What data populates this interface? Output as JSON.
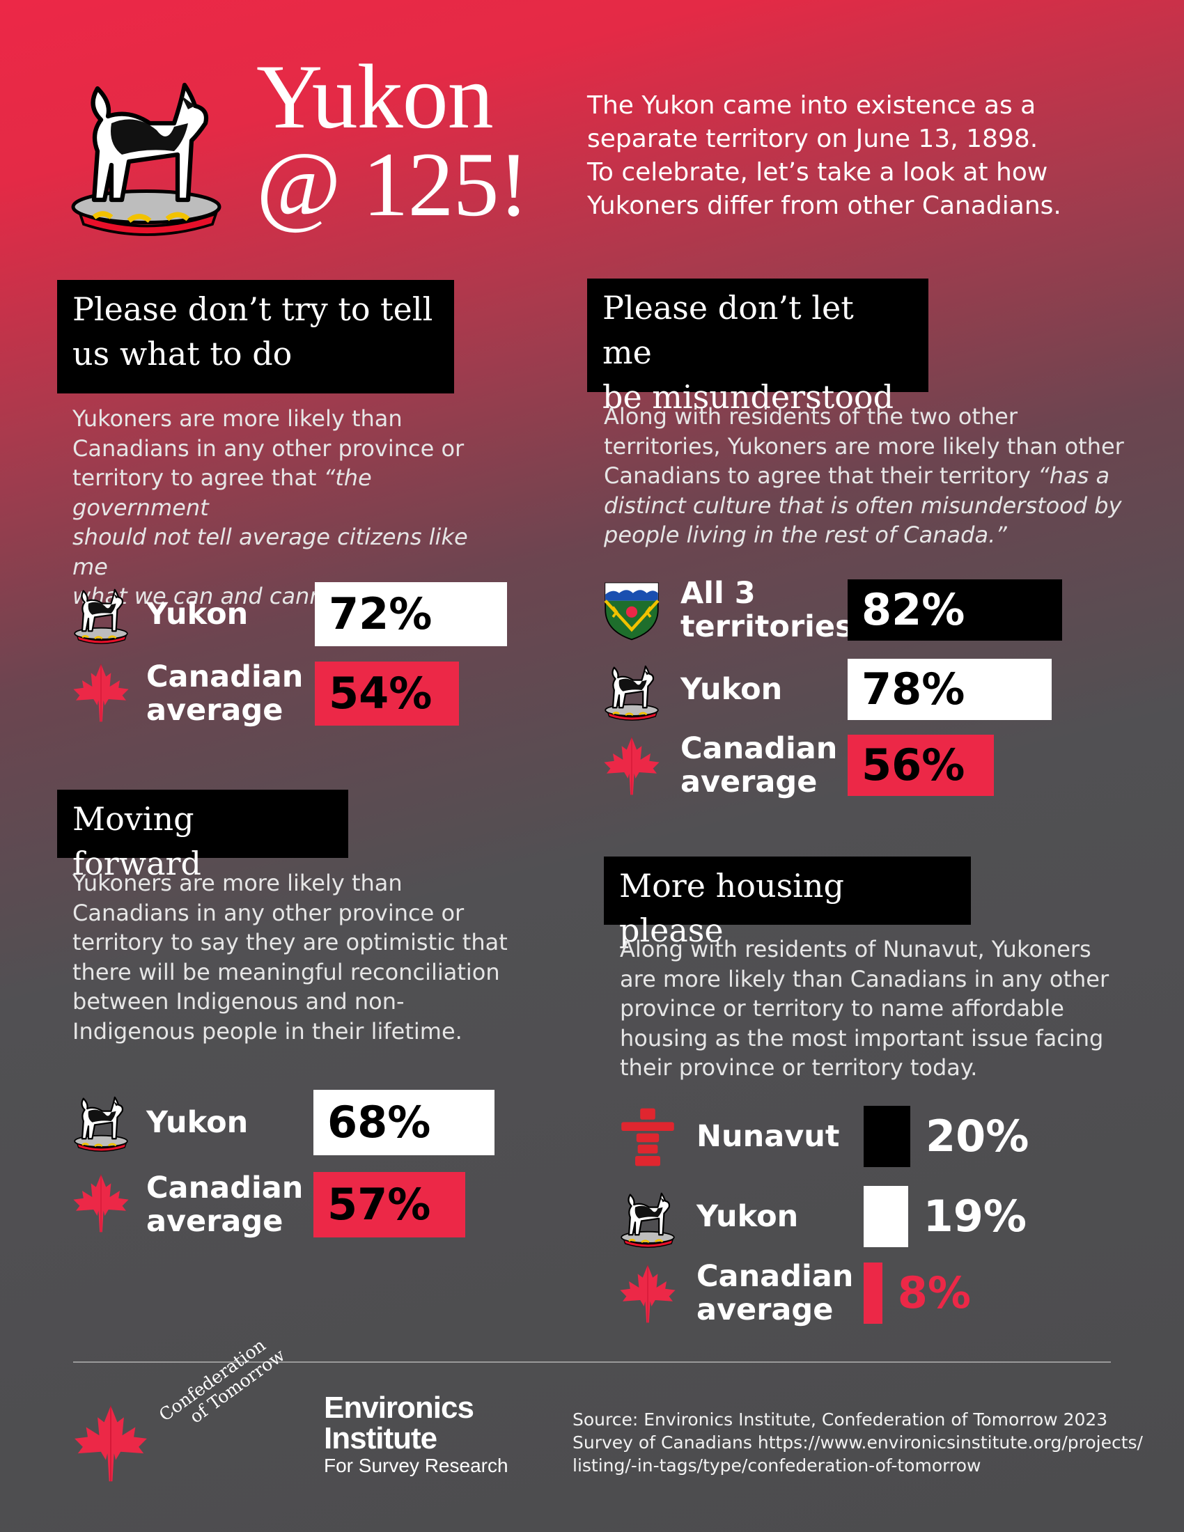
{
  "header": {
    "title_line1": "Yukon",
    "title_line2": "@ 125!",
    "intro_lines": [
      "The Yukon came into existence as a",
      "separate territory on June 13, 1898.",
      "To celebrate, let’s take a look at how",
      "Yukoners differ from other Canadians."
    ]
  },
  "colors": {
    "red": "#ec2847",
    "black": "#000000",
    "white": "#ffffff"
  },
  "sections": {
    "s1": {
      "heading_lines": [
        "Please don’t try to tell",
        "us what to do"
      ],
      "desc_lines": [
        "Yukoners are more likely than",
        "Canadians in any other province or"
      ],
      "desc_mixed": {
        "plain": "territory to agree that ",
        "italic": "“the government"
      },
      "desc_italic_lines": [
        "should not tell average citizens like me",
        "what we can and cannot do.”"
      ]
    },
    "s2": {
      "heading_lines": [
        "Please don’t let me",
        "be misunderstood"
      ],
      "desc_lines": [
        "Along with residents of the two other",
        "territories, Yukoners are more likely than other"
      ],
      "desc_mixed": {
        "plain": "Canadians to agree that their territory ",
        "italic": "“has a"
      },
      "desc_italic_lines": [
        "distinct culture that is often misunderstood by",
        "people living in the rest of Canada.”"
      ]
    },
    "s3": {
      "heading_lines": [
        "Moving forward"
      ],
      "desc_lines": [
        "Yukoners are more likely than",
        "Canadians in any other province or",
        "territory to say they are optimistic that",
        "there will be meaningful reconciliation",
        "between Indigenous and non-",
        "Indigenous people in their lifetime."
      ]
    },
    "s4": {
      "heading_lines": [
        "More housing please"
      ],
      "desc_lines": [
        "Along with residents of Nunavut, Yukoners",
        "are more likely than Canadians in any other",
        "province or territory to name affordable",
        "housing as the most important issue facing",
        "their province or territory today."
      ]
    }
  },
  "chart_data": [
    {
      "type": "bar",
      "categories": [
        [
          "Yukon"
        ],
        [
          "Canadian",
          "average"
        ]
      ],
      "values": [
        72,
        54
      ],
      "value_labels": [
        "72%",
        "54%"
      ],
      "colors": [
        "#ffffff",
        "#ec2847"
      ],
      "icons": [
        "husky-emblem-icon",
        "maple-leaf-icon"
      ],
      "unit": "%"
    },
    {
      "type": "bar",
      "categories": [
        [
          "All 3",
          "territories"
        ],
        [
          "Yukon"
        ],
        [
          "Canadian",
          "average"
        ]
      ],
      "values": [
        82,
        78,
        56
      ],
      "value_labels": [
        "82%",
        "78%",
        "56%"
      ],
      "colors": [
        "#000000",
        "#ffffff",
        "#ec2847"
      ],
      "icons": [
        "nwt-shield-icon",
        "husky-emblem-icon",
        "maple-leaf-icon"
      ],
      "unit": "%"
    },
    {
      "type": "bar",
      "categories": [
        [
          "Yukon"
        ],
        [
          "Canadian",
          "average"
        ]
      ],
      "values": [
        68,
        57
      ],
      "value_labels": [
        "68%",
        "57%"
      ],
      "colors": [
        "#ffffff",
        "#ec2847"
      ],
      "icons": [
        "husky-emblem-icon",
        "maple-leaf-icon"
      ],
      "unit": "%"
    },
    {
      "type": "bar",
      "categories": [
        [
          "Nunavut"
        ],
        [
          "Yukon"
        ],
        [
          "Canadian",
          "average"
        ]
      ],
      "values": [
        20,
        19,
        8
      ],
      "value_labels": [
        "20%",
        "19%",
        "8%"
      ],
      "colors": [
        "#000000",
        "#ffffff",
        "#ec2847"
      ],
      "icons": [
        "inukshuk-icon",
        "husky-emblem-icon",
        "maple-leaf-icon"
      ],
      "unit": "%"
    }
  ],
  "footer": {
    "cot_logo_line1": "Confederation",
    "cot_logo_line2": "of Tomorrow",
    "env_line1": "Environics",
    "env_line2": "Institute",
    "env_line3": "For Survey Research",
    "source_lines": [
      "Source: Environics Institute, Confederation of Tomorrow 2023",
      "Survey of Canadians https://www.environicsinstitute.org/projects/",
      "listing/-in-tags/type/confederation-of-tomorrow"
    ]
  }
}
